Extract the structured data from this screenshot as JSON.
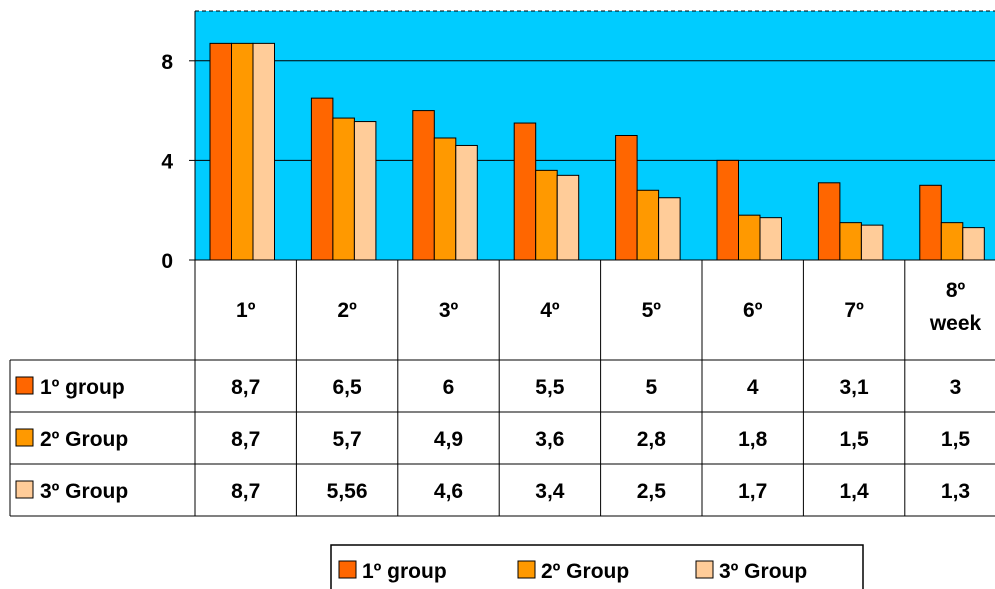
{
  "chart_data": {
    "type": "bar",
    "categories": [
      [
        "1º"
      ],
      [
        "2º"
      ],
      [
        "3º"
      ],
      [
        "4º"
      ],
      [
        "5º"
      ],
      [
        "6º"
      ],
      [
        "7º"
      ],
      [
        "8º",
        "week"
      ]
    ],
    "series": [
      {
        "name": "1º group",
        "values": [
          8.7,
          6.5,
          6,
          5.5,
          5,
          4,
          3.1,
          3
        ],
        "labels": [
          "8,7",
          "6,5",
          "6",
          "5,5",
          "5",
          "4",
          "3,1",
          "3"
        ],
        "color": "#ff6600"
      },
      {
        "name": "2º Group",
        "values": [
          8.7,
          5.7,
          4.9,
          3.6,
          2.8,
          1.8,
          1.5,
          1.5
        ],
        "labels": [
          "8,7",
          "5,7",
          "4,9",
          "3,6",
          "2,8",
          "1,8",
          "1,5",
          "1,5"
        ],
        "color": "#ff9900"
      },
      {
        "name": "3º Group",
        "values": [
          8.7,
          5.56,
          4.6,
          3.4,
          2.5,
          1.7,
          1.4,
          1.3
        ],
        "labels": [
          "8,7",
          "5,56",
          "4,6",
          "3,4",
          "2,5",
          "1,7",
          "1,4",
          "1,3"
        ],
        "color": "#ffcc99"
      }
    ],
    "yticks": [
      "0",
      "4",
      "8"
    ],
    "ytick_values": [
      0,
      4,
      8
    ],
    "ylim": [
      0,
      10
    ],
    "grid": true,
    "plot_background": "#00ccff",
    "data_table": true,
    "legend_position": "bottom"
  }
}
